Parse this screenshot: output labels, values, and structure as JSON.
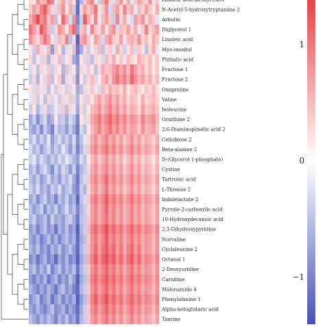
{
  "chart_data": {
    "type": "heatmap",
    "title": "",
    "xlabel": "",
    "ylabel": "",
    "rows": [
      "Linoleic acid methyl ester",
      "N-Acetyl-5-hydroxytryptamine 2",
      "Arbutin",
      "Diglycerol 1",
      "Linoleic acid",
      "Myo-inositol",
      "Phthalic acid",
      "Fructose 1",
      "Fructose 2",
      "Oxoproline",
      "Valine",
      "Isoleucine",
      "Ornithine 2",
      "2,6-Diaminopimelic acid 2",
      "Cellobiose 2",
      "Beta-alanine 2",
      "D-(Glycerol 1-phosphate)",
      "Cystine",
      "Tartronic acid",
      "L-Threose 2",
      "Indolelactate 2",
      "Pyrrole-2-carboxylic acid",
      "10-Hydroxydecanoic acid",
      "2,3-Dihydroxypyridine",
      "Norvaline",
      "Cycloleucine 2",
      "Octanal 1",
      "2-Deoxyuridine",
      "Carnitine",
      "Malonamide 4",
      "Phenylalanine 1",
      "Alpha-ketoglutaric acid",
      "Taurine"
    ],
    "column_count": 36,
    "color_scale": {
      "low": "#3b46b4",
      "mid": "#ffffff",
      "high": "#e8323a",
      "range": [
        -1.5,
        1.5
      ]
    },
    "legend": {
      "ticks": [
        "1",
        "0",
        "−1"
      ]
    },
    "values": [
      [
        0.3,
        0.2,
        0.8,
        0.5,
        0.6,
        1.1,
        0.9,
        -0.2,
        0.4,
        0.7,
        -0.3,
        0.5,
        0.2,
        -1.1,
        -0.6,
        0.4,
        0.7,
        0.9,
        0.2,
        -0.4,
        0.6,
        1.0,
        0.3,
        -0.3,
        0.5,
        0.8,
        0.2,
        0.6,
        -0.2,
        0.4,
        0.7,
        0.5,
        0.3,
        0.8,
        -0.2,
        0.4
      ],
      [
        0.4,
        0.7,
        0.5,
        0.9,
        1.2,
        0.6,
        0.3,
        -0.3,
        0.5,
        0.8,
        0.2,
        0.6,
        -0.4,
        -1.2,
        0.3,
        0.7,
        0.4,
        0.6,
        1.0,
        0.2,
        0.4,
        0.8,
        -0.3,
        0.5,
        0.7,
        0.3,
        0.9,
        0.4,
        0.6,
        -0.2,
        0.5,
        0.3,
        0.7,
        0.4,
        0.2,
        0.6
      ],
      [
        0.6,
        0.9,
        1.3,
        0.8,
        1.0,
        0.4,
        0.7,
        -0.5,
        0.2,
        1.1,
        0.6,
        -0.3,
        0.8,
        -1.0,
        -0.4,
        1.2,
        0.6,
        0.3,
        0.9,
        -0.2,
        0.5,
        0.7,
        0.4,
        -0.4,
        0.9,
        0.3,
        0.6,
        0.2,
        -0.3,
        0.7,
        0.5,
        0.8,
        0.2,
        0.6,
        0.4,
        -0.2
      ],
      [
        1.0,
        0.7,
        0.4,
        1.2,
        0.9,
        0.5,
        -0.4,
        0.3,
        0.8,
        0.6,
        0.2,
        0.7,
        1.1,
        -0.8,
        0.4,
        0.6,
        -0.2,
        0.9,
        0.4,
        0.3,
        0.7,
        0.2,
        0.6,
        0.8,
        -0.3,
        0.5,
        0.4,
        0.7,
        0.3,
        0.6,
        -0.2,
        0.4,
        0.9,
        0.3,
        0.5,
        0.7
      ],
      [
        0.8,
        0.5,
        0.3,
        0.6,
        1.0,
        0.7,
        0.2,
        -0.3,
        0.5,
        0.4,
        0.9,
        -0.5,
        0.3,
        -1.3,
        0.6,
        0.8,
        0.4,
        0.2,
        0.7,
        0.5,
        -0.3,
        0.6,
        0.8,
        0.4,
        0.3,
        0.7,
        -0.2,
        0.5,
        0.6,
        0.4,
        0.8,
        0.3,
        0.5,
        0.2,
        0.6,
        0.4
      ],
      [
        0.2,
        -0.4,
        0.6,
        0.3,
        -0.2,
        0.5,
        -0.8,
        0.4,
        0.2,
        -0.6,
        0.3,
        -0.2,
        0.5,
        -1.1,
        -0.7,
        0.3,
        -0.4,
        0.2,
        -0.3,
        0.5,
        -0.5,
        0.3,
        0.4,
        -0.2,
        0.6,
        0.3,
        -0.4,
        0.2,
        0.5,
        -0.3,
        0.4,
        0.2,
        -0.5,
        0.3,
        0.6,
        -0.2
      ],
      [
        0.3,
        -0.5,
        0.2,
        -0.3,
        0.4,
        -0.6,
        0.3,
        -0.2,
        0.5,
        -0.4,
        0.2,
        0.3,
        -0.7,
        -0.9,
        0.2,
        -0.3,
        0.4,
        -0.5,
        0.3,
        0.2,
        -0.3,
        0.5,
        0.3,
        0.6,
        0.2,
        0.4,
        -0.2,
        0.5,
        0.3,
        0.2,
        0.6,
        0.4,
        0.3,
        0.5,
        0.2,
        0.4
      ],
      [
        -0.3,
        0.2,
        -0.5,
        0.3,
        -0.2,
        0.4,
        -0.4,
        0.3,
        0.2,
        -0.6,
        0.5,
        -0.3,
        0.2,
        -0.8,
        0.3,
        -0.2,
        0.4,
        0.2,
        -0.5,
        0.3,
        0.6,
        0.4,
        0.5,
        0.7,
        0.9,
        0.6,
        0.8,
        0.5,
        1.0,
        0.7,
        0.4,
        0.6,
        0.3,
        0.5,
        0.2,
        0.4
      ],
      [
        -0.4,
        0.3,
        -0.6,
        0.2,
        -0.3,
        0.5,
        -0.5,
        0.2,
        0.4,
        -0.7,
        0.3,
        -0.2,
        0.4,
        -0.9,
        0.2,
        -0.4,
        0.3,
        0.5,
        -0.3,
        0.2,
        0.5,
        0.7,
        0.4,
        0.8,
        1.0,
        0.7,
        0.9,
        0.6,
        1.1,
        0.8,
        0.5,
        0.7,
        0.4,
        0.6,
        0.3,
        0.5
      ],
      [
        0.2,
        -0.3,
        0.4,
        -0.2,
        0.3,
        -0.5,
        0.2,
        -0.4,
        0.3,
        -0.2,
        0.4,
        -0.3,
        0.2,
        -0.7,
        -0.5,
        0.3,
        -0.2,
        0.4,
        0.2,
        -0.3,
        0.5,
        0.3,
        0.6,
        0.4,
        0.5,
        0.3,
        0.6,
        0.2,
        0.4,
        0.5,
        0.3,
        0.2,
        0.4,
        0.3,
        0.5,
        0.2
      ],
      [
        -0.2,
        0.3,
        -0.4,
        0.2,
        -0.5,
        0.3,
        -0.3,
        0.2,
        -0.4,
        0.3,
        -0.2,
        0.4,
        -0.3,
        -0.6,
        0.2,
        -0.3,
        0.4,
        0.2,
        0.5,
        0.7,
        0.4,
        0.6,
        0.8,
        0.5,
        0.7,
        0.4,
        0.6,
        0.3,
        0.5,
        0.4,
        0.2,
        0.6,
        0.3,
        0.4,
        0.5,
        0.3
      ],
      [
        -0.4,
        0.2,
        -0.6,
        -0.3,
        0.3,
        -0.5,
        -0.4,
        0.2,
        -0.3,
        0.4,
        -0.5,
        0.3,
        -0.2,
        -0.7,
        0.3,
        -0.4,
        0.2,
        0.5,
        0.6,
        0.8,
        0.5,
        0.7,
        0.9,
        0.6,
        0.8,
        0.5,
        0.7,
        0.4,
        0.6,
        0.5,
        0.3,
        0.7,
        0.4,
        0.5,
        0.6,
        0.4
      ],
      [
        -0.7,
        -0.4,
        -0.9,
        -0.5,
        -0.3,
        -0.8,
        -0.6,
        0.2,
        -0.5,
        -0.4,
        -0.7,
        -0.3,
        -0.5,
        -1.0,
        0.2,
        -0.3,
        0.3,
        0.6,
        0.8,
        1.0,
        0.7,
        0.9,
        1.1,
        0.8,
        1.0,
        0.7,
        0.9,
        0.6,
        0.8,
        0.7,
        0.5,
        0.9,
        0.6,
        0.7,
        0.8,
        0.5
      ],
      [
        -0.6,
        -0.8,
        -0.5,
        -0.9,
        -0.4,
        -0.7,
        -1.0,
        -0.3,
        -0.6,
        -0.5,
        -0.8,
        -0.4,
        -0.7,
        -1.1,
        -0.3,
        -0.5,
        0.2,
        0.5,
        0.7,
        0.9,
        0.6,
        0.8,
        1.0,
        0.7,
        0.9,
        0.6,
        0.8,
        0.5,
        0.7,
        0.6,
        0.4,
        0.8,
        0.5,
        0.6,
        0.7,
        0.4
      ],
      [
        -0.5,
        -0.3,
        -0.7,
        -0.4,
        -0.6,
        -0.2,
        -0.8,
        -0.5,
        -0.3,
        -0.6,
        -0.4,
        -0.7,
        -0.3,
        -0.9,
        -0.5,
        -0.2,
        0.3,
        0.6,
        0.8,
        0.5,
        0.7,
        0.9,
        0.6,
        0.8,
        0.5,
        0.7,
        0.4,
        0.6,
        0.8,
        0.5,
        0.7,
        0.4,
        0.6,
        0.5,
        0.3,
        0.6
      ],
      [
        -0.3,
        -0.6,
        -0.4,
        -0.8,
        -0.5,
        -0.3,
        -0.7,
        -0.4,
        -0.6,
        -0.2,
        -0.5,
        -0.8,
        -0.4,
        -1.0,
        -0.6,
        -0.3,
        0.4,
        0.7,
        0.9,
        0.6,
        0.8,
        1.0,
        0.7,
        0.9,
        0.6,
        0.8,
        0.5,
        0.7,
        0.9,
        0.6,
        0.8,
        0.5,
        0.7,
        0.6,
        0.4,
        0.7
      ],
      [
        -0.4,
        -0.2,
        -0.6,
        -0.3,
        -0.5,
        -0.7,
        -0.4,
        -0.6,
        -0.3,
        -0.5,
        -0.2,
        -0.4,
        -0.6,
        -0.8,
        -0.3,
        -0.5,
        0.2,
        0.5,
        0.7,
        0.4,
        0.6,
        0.8,
        0.5,
        0.7,
        0.4,
        0.6,
        0.3,
        0.5,
        0.7,
        0.4,
        0.6,
        0.3,
        0.5,
        0.4,
        0.2,
        0.5
      ],
      [
        -0.6,
        -0.4,
        -0.8,
        -0.5,
        -0.3,
        -0.6,
        -0.9,
        -0.4,
        -0.7,
        -0.3,
        -0.5,
        -0.8,
        -0.4,
        -1.0,
        -0.6,
        -0.4,
        0.3,
        0.6,
        0.8,
        0.5,
        0.7,
        0.9,
        0.6,
        0.8,
        0.5,
        0.7,
        0.4,
        0.6,
        0.8,
        0.5,
        0.7,
        0.4,
        0.6,
        0.5,
        0.3,
        0.6
      ],
      [
        -0.5,
        -0.7,
        -0.4,
        -0.8,
        -0.6,
        -0.3,
        -0.7,
        -0.5,
        -0.8,
        -0.4,
        -0.6,
        -0.3,
        -0.7,
        -1.1,
        -0.5,
        -0.3,
        0.4,
        0.7,
        0.9,
        0.6,
        0.8,
        1.1,
        0.7,
        0.9,
        0.6,
        0.8,
        0.5,
        0.7,
        0.9,
        0.6,
        0.8,
        0.5,
        0.7,
        0.6,
        0.4,
        0.7
      ],
      [
        -0.4,
        -0.6,
        -0.3,
        -0.7,
        -0.5,
        -0.8,
        -0.4,
        -0.6,
        -0.3,
        -0.7,
        -0.5,
        -0.4,
        -0.8,
        -1.0,
        -0.4,
        -0.6,
        0.3,
        0.6,
        0.8,
        0.5,
        0.7,
        1.0,
        0.6,
        0.8,
        0.5,
        0.7,
        0.4,
        0.6,
        0.8,
        0.5,
        0.7,
        0.4,
        0.6,
        0.5,
        0.3,
        0.6
      ],
      [
        -0.7,
        -0.5,
        -0.9,
        -0.6,
        -0.4,
        -0.8,
        -0.6,
        -1.0,
        -0.5,
        -0.7,
        -0.4,
        -0.8,
        -0.6,
        -1.2,
        -0.5,
        -0.3,
        0.4,
        0.8,
        1.0,
        0.7,
        0.9,
        1.2,
        0.8,
        1.0,
        0.7,
        0.9,
        0.6,
        0.8,
        1.0,
        0.7,
        0.9,
        0.6,
        0.8,
        0.7,
        0.5,
        0.8
      ],
      [
        -0.5,
        -0.8,
        -0.6,
        -0.4,
        -0.9,
        -0.5,
        -0.7,
        -0.4,
        -0.8,
        -0.6,
        -0.3,
        -0.7,
        -0.5,
        -1.0,
        -0.6,
        -0.4,
        0.3,
        0.7,
        0.9,
        0.6,
        0.8,
        1.1,
        0.7,
        0.9,
        0.6,
        0.8,
        0.5,
        0.7,
        0.9,
        0.6,
        0.8,
        0.5,
        0.7,
        0.6,
        0.4,
        0.7
      ],
      [
        -0.6,
        -0.4,
        -0.8,
        -0.7,
        -0.5,
        -0.9,
        -0.4,
        -0.7,
        -0.6,
        -0.8,
        -0.5,
        -0.4,
        -0.7,
        -1.1,
        -0.5,
        -0.4,
        0.4,
        0.7,
        0.9,
        0.6,
        0.8,
        1.0,
        0.7,
        0.9,
        0.6,
        0.8,
        0.5,
        0.7,
        0.9,
        0.6,
        0.8,
        0.5,
        0.7,
        0.6,
        0.4,
        0.7
      ],
      [
        -0.8,
        -0.6,
        -1.0,
        -0.7,
        -0.5,
        -0.9,
        -0.7,
        -1.1,
        -0.6,
        -0.8,
        -0.5,
        -0.9,
        -0.7,
        -1.3,
        -0.6,
        -0.4,
        0.5,
        0.9,
        1.1,
        0.8,
        1.0,
        1.3,
        0.9,
        1.1,
        0.8,
        1.0,
        0.7,
        0.9,
        1.1,
        0.8,
        1.0,
        0.7,
        0.9,
        0.8,
        0.6,
        0.9
      ],
      [
        -0.7,
        -0.9,
        -0.6,
        -1.0,
        -0.8,
        -0.5,
        -0.9,
        -0.6,
        -1.0,
        -0.7,
        -0.5,
        -0.8,
        -0.6,
        -1.2,
        -0.7,
        -0.5,
        0.4,
        0.8,
        1.0,
        0.7,
        0.9,
        1.2,
        0.8,
        1.0,
        0.7,
        0.9,
        0.6,
        0.8,
        1.0,
        0.7,
        0.9,
        0.6,
        0.8,
        0.7,
        0.5,
        0.8
      ],
      [
        -0.6,
        -0.8,
        -0.5,
        -0.9,
        -0.7,
        -1.0,
        -0.6,
        -0.8,
        -0.5,
        -0.9,
        -0.7,
        -0.5,
        -0.8,
        -1.2,
        -0.6,
        -0.4,
        0.5,
        0.8,
        1.1,
        0.7,
        1.0,
        1.2,
        0.9,
        1.1,
        0.7,
        1.0,
        0.6,
        0.9,
        1.1,
        0.7,
        1.0,
        0.6,
        0.8,
        0.7,
        0.5,
        0.8
      ],
      [
        -0.9,
        -0.7,
        -1.1,
        -0.8,
        -0.6,
        -1.0,
        -0.8,
        -1.2,
        -0.7,
        -0.9,
        -0.6,
        -1.0,
        -0.8,
        -1.3,
        -0.7,
        -0.5,
        0.6,
        0.9,
        1.2,
        0.8,
        1.1,
        1.3,
        1.0,
        1.2,
        0.8,
        1.1,
        0.7,
        1.0,
        1.2,
        0.8,
        1.1,
        0.7,
        0.9,
        0.8,
        0.6,
        0.9
      ],
      [
        -0.7,
        -0.5,
        -0.9,
        -0.6,
        -0.8,
        -0.4,
        -1.0,
        -0.7,
        -0.5,
        -0.9,
        -0.6,
        -0.8,
        -0.5,
        -1.1,
        -0.6,
        -0.4,
        0.4,
        0.8,
        1.0,
        0.7,
        0.9,
        1.1,
        0.8,
        1.0,
        0.7,
        0.9,
        0.6,
        0.8,
        1.0,
        0.7,
        0.9,
        0.6,
        0.8,
        0.7,
        0.5,
        0.8
      ],
      [
        -0.8,
        -1.0,
        -0.7,
        -0.9,
        -0.6,
        -1.1,
        -0.8,
        -0.6,
        -1.0,
        -0.7,
        -0.9,
        -0.5,
        -0.8,
        -1.3,
        -0.7,
        -0.5,
        0.5,
        0.9,
        1.1,
        0.8,
        1.0,
        1.2,
        0.9,
        1.1,
        0.8,
        1.0,
        0.7,
        0.9,
        1.1,
        0.8,
        1.0,
        0.7,
        0.9,
        0.8,
        0.6,
        0.9
      ],
      [
        -0.6,
        -0.8,
        -1.0,
        -0.7,
        -0.9,
        -0.6,
        -0.8,
        -1.1,
        -0.7,
        -0.5,
        -0.9,
        -0.7,
        -1.0,
        -1.2,
        -0.6,
        -0.4,
        0.4,
        0.8,
        1.0,
        0.7,
        0.9,
        1.1,
        0.8,
        1.0,
        0.7,
        0.9,
        0.6,
        0.8,
        1.0,
        0.7,
        0.9,
        0.6,
        0.8,
        0.7,
        0.5,
        0.8
      ],
      [
        -0.9,
        -0.7,
        -0.5,
        -1.0,
        -0.8,
        -0.6,
        -1.1,
        -0.8,
        -0.6,
        -1.0,
        -0.7,
        -0.9,
        -0.6,
        -1.3,
        -0.8,
        -0.5,
        0.5,
        0.9,
        1.2,
        0.8,
        1.0,
        1.3,
        0.9,
        1.1,
        0.8,
        1.0,
        0.7,
        0.9,
        1.1,
        0.8,
        1.0,
        0.7,
        0.9,
        0.8,
        0.6,
        0.9
      ],
      [
        -0.7,
        -0.9,
        -0.6,
        -0.8,
        -1.0,
        -0.7,
        -0.5,
        -0.9,
        -0.8,
        -0.6,
        -1.0,
        -0.7,
        -0.9,
        -1.2,
        -0.7,
        -0.4,
        0.4,
        0.8,
        1.0,
        0.7,
        0.9,
        1.1,
        0.8,
        1.0,
        0.7,
        0.9,
        0.6,
        0.8,
        1.0,
        0.7,
        0.9,
        0.6,
        0.8,
        0.7,
        0.5,
        0.8
      ],
      [
        -0.5,
        -0.7,
        -0.9,
        -0.6,
        -0.8,
        -0.5,
        -0.7,
        -1.0,
        -0.6,
        -0.8,
        -0.5,
        -0.9,
        -0.7,
        -1.1,
        -0.6,
        -0.4,
        0.4,
        0.7,
        0.9,
        0.6,
        0.8,
        1.0,
        0.7,
        0.9,
        0.6,
        0.8,
        0.5,
        0.7,
        0.9,
        0.6,
        0.8,
        0.5,
        0.7,
        0.6,
        0.4,
        0.7
      ]
    ]
  }
}
